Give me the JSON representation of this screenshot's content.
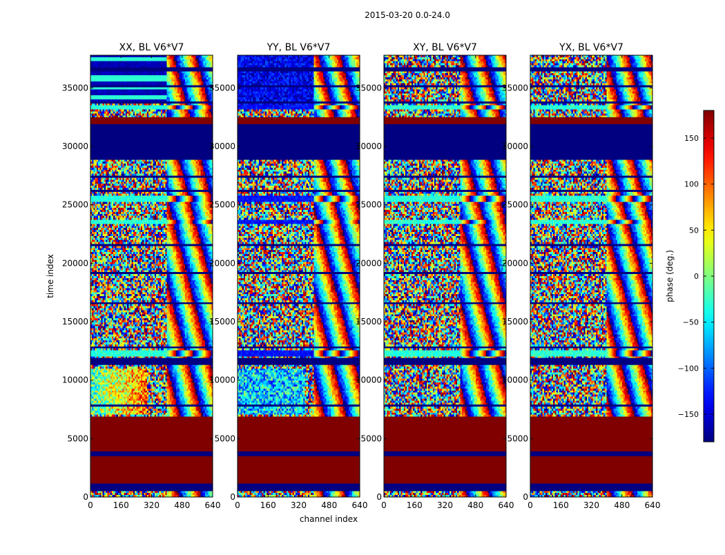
{
  "chart_data": {
    "type": "heatmap",
    "title": "2015-03-20 0.0-24.0",
    "xlabel": "channel index",
    "ylabel": "time index",
    "xlim": [
      0,
      640
    ],
    "ylim": [
      0,
      37800
    ],
    "x_ticks": [
      0,
      160,
      320,
      480,
      640
    ],
    "y_ticks": [
      0,
      5000,
      10000,
      15000,
      20000,
      25000,
      30000,
      35000
    ],
    "colormap": "jet",
    "colorbar": {
      "label": "phase (deg.)",
      "vmin": -180,
      "vmax": 180,
      "ticks": [
        -150,
        -100,
        -50,
        0,
        50,
        100,
        150
      ],
      "tick_labels": [
        "−150",
        "−100",
        "−50",
        "0",
        "50",
        "100",
        "150"
      ]
    },
    "panels": [
      {
        "id": "xx",
        "title": "XX, BL V6*V7",
        "pol": "XX",
        "baseline": "V6*V7"
      },
      {
        "id": "yy",
        "title": "YY, BL V6*V7",
        "pol": "YY",
        "baseline": "V6*V7"
      },
      {
        "id": "xy",
        "title": "XY, BL V6*V7",
        "pol": "XY",
        "baseline": "V6*V7"
      },
      {
        "id": "yx",
        "title": "YX, BL V6*V7",
        "pol": "YX",
        "baseline": "V6*V7"
      }
    ],
    "flagged_blocks": [
      {
        "t_start": 0,
        "t_end": 200,
        "phase": "noise"
      },
      {
        "t_start": 200,
        "t_end": 600,
        "phase": "noise"
      },
      {
        "t_start": 600,
        "t_end": 1150,
        "phase": -180
      },
      {
        "t_start": 1150,
        "t_end": 3500,
        "phase": 180
      },
      {
        "t_start": 3500,
        "t_end": 3900,
        "phase": -180
      },
      {
        "t_start": 3900,
        "t_end": 6800,
        "phase": 180
      },
      {
        "t_start": 11300,
        "t_end": 11900,
        "phase": -180
      },
      {
        "t_start": 28900,
        "t_end": 31900,
        "phase": -180
      },
      {
        "t_start": 31900,
        "t_end": 32500,
        "phase": 180
      }
    ]
  }
}
